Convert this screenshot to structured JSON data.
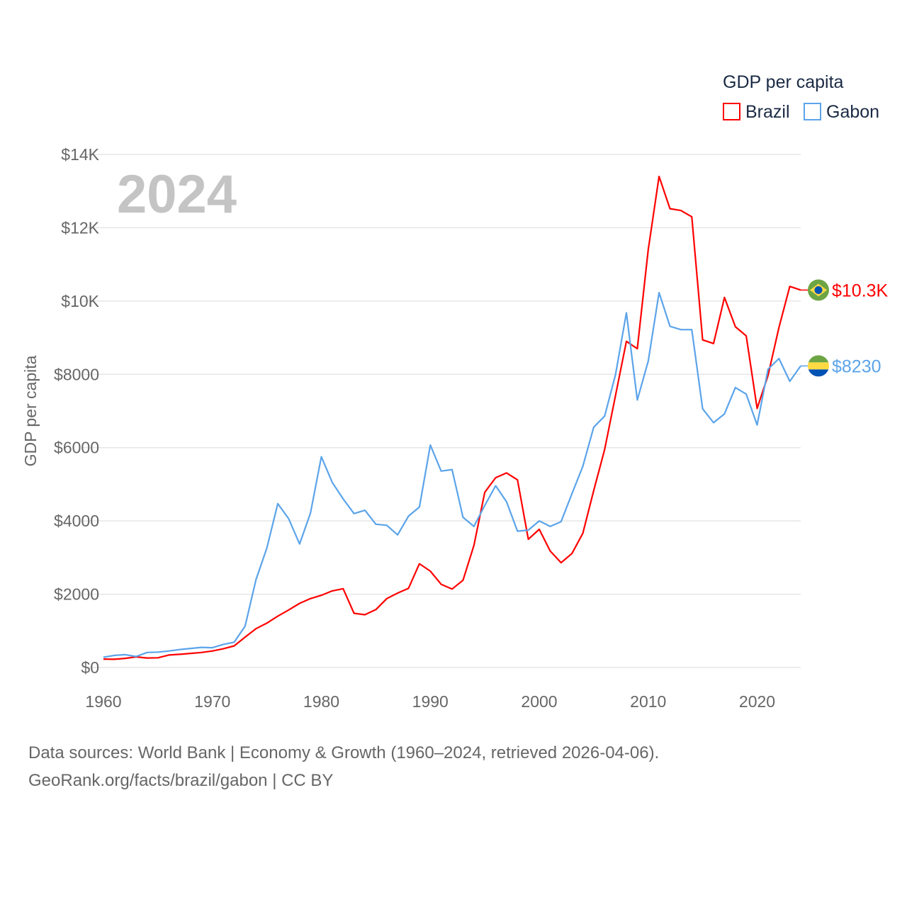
{
  "chart_data": {
    "type": "line",
    "title": "GDP per capita",
    "year_label": "2024",
    "xlabel": "",
    "ylabel": "GDP per capita",
    "xlim": [
      1960,
      2024
    ],
    "ylim": [
      0,
      14000
    ],
    "x_ticks": [
      1960,
      1970,
      1980,
      1990,
      2000,
      2010,
      2020
    ],
    "x_tick_labels": [
      "1960",
      "1970",
      "1980",
      "1990",
      "2000",
      "2010",
      "2020"
    ],
    "y_ticks": [
      0,
      2000,
      4000,
      6000,
      8000,
      10000,
      12000,
      14000
    ],
    "y_tick_labels": [
      "$0",
      "$2000",
      "$4000",
      "$6000",
      "$8000",
      "$10K",
      "$12K",
      "$14K"
    ],
    "grid": true,
    "legend_position": "top-right",
    "x": [
      1960,
      1961,
      1962,
      1963,
      1964,
      1965,
      1966,
      1967,
      1968,
      1969,
      1970,
      1971,
      1972,
      1973,
      1974,
      1975,
      1976,
      1977,
      1978,
      1979,
      1980,
      1981,
      1982,
      1983,
      1984,
      1985,
      1986,
      1987,
      1988,
      1989,
      1990,
      1991,
      1992,
      1993,
      1994,
      1995,
      1996,
      1997,
      1998,
      1999,
      2000,
      2001,
      2002,
      2003,
      2004,
      2005,
      2006,
      2007,
      2008,
      2009,
      2010,
      2011,
      2012,
      2013,
      2014,
      2015,
      2016,
      2017,
      2018,
      2019,
      2020,
      2021,
      2022,
      2023,
      2024
    ],
    "series": [
      {
        "name": "Brazil",
        "color": "#ff0000",
        "end_label": "$10.3K",
        "flag": "brazil-flag",
        "values": [
          230,
          225,
          250,
          290,
          260,
          265,
          340,
          360,
          385,
          410,
          450,
          510,
          590,
          830,
          1060,
          1210,
          1400,
          1570,
          1750,
          1880,
          1970,
          2090,
          2150,
          1480,
          1440,
          1580,
          1880,
          2030,
          2160,
          2830,
          2630,
          2270,
          2140,
          2380,
          3330,
          4780,
          5180,
          5310,
          5120,
          3500,
          3770,
          3180,
          2860,
          3110,
          3660,
          4830,
          5950,
          7420,
          8900,
          8700,
          11400,
          13400,
          12520,
          12470,
          12300,
          8940,
          8840,
          10100,
          9300,
          9050,
          7070,
          7970,
          9280,
          10400,
          10300
        ]
      },
      {
        "name": "Gabon",
        "color": "#5ba4ea",
        "end_label": "$8230",
        "flag": "gabon-flag",
        "values": [
          280,
          330,
          350,
          300,
          410,
          420,
          450,
          490,
          520,
          550,
          540,
          630,
          690,
          1130,
          2400,
          3260,
          4470,
          4060,
          3370,
          4210,
          5750,
          5050,
          4600,
          4200,
          4290,
          3910,
          3880,
          3620,
          4130,
          4380,
          6070,
          5360,
          5400,
          4100,
          3850,
          4420,
          4960,
          4520,
          3720,
          3750,
          4000,
          3850,
          3980,
          4740,
          5490,
          6560,
          6860,
          7990,
          9680,
          7300,
          8360,
          10230,
          9310,
          9220,
          9220,
          7060,
          6680,
          6920,
          7640,
          7460,
          6620,
          8140,
          8430,
          7810,
          8230
        ]
      }
    ]
  },
  "footer": {
    "line1": "Data sources: World Bank | Economy & Growth (1960–2024, retrieved 2026-04-06).",
    "line2": "GeoRank.org/facts/brazil/gabon | CC BY"
  }
}
